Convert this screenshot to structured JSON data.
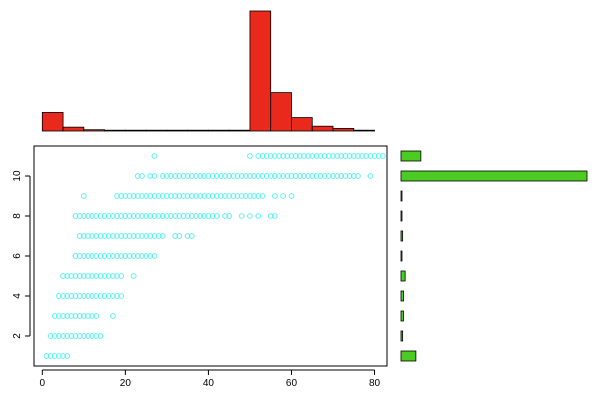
{
  "chart_data": [
    {
      "type": "bar",
      "role": "top-histogram",
      "orientation": "vertical",
      "bin_width": 5,
      "bins": [
        {
          "start": 0,
          "count": 58
        },
        {
          "start": 5,
          "count": 12
        },
        {
          "start": 10,
          "count": 4
        },
        {
          "start": 15,
          "count": 2
        },
        {
          "start": 20,
          "count": 1
        },
        {
          "start": 25,
          "count": 1
        },
        {
          "start": 30,
          "count": 1
        },
        {
          "start": 35,
          "count": 1
        },
        {
          "start": 40,
          "count": 1
        },
        {
          "start": 45,
          "count": 2
        },
        {
          "start": 50,
          "count": 375
        },
        {
          "start": 55,
          "count": 120
        },
        {
          "start": 60,
          "count": 42
        },
        {
          "start": 65,
          "count": 15
        },
        {
          "start": 70,
          "count": 8
        },
        {
          "start": 75,
          "count": 2
        }
      ],
      "color": "#e8291c",
      "xlim": [
        -2,
        83
      ],
      "ylim": [
        0,
        375
      ],
      "axes": false,
      "title": "",
      "xlabel": "",
      "ylabel": ""
    },
    {
      "type": "scatter",
      "role": "main-scatter",
      "marker": "open-circle",
      "color": "#5ff0f0",
      "xlim": [
        -2,
        83
      ],
      "ylim": [
        0.5,
        11.5
      ],
      "xticks": [
        0,
        20,
        40,
        60,
        80
      ],
      "yticks": [
        2,
        4,
        6,
        8,
        10
      ],
      "xtick_labels": [
        "0",
        "20",
        "40",
        "60",
        "80"
      ],
      "ytick_labels": [
        "2",
        "4",
        "6",
        "8",
        "10"
      ],
      "rows": [
        {
          "y": 1,
          "x_from": 1,
          "x_to": 5,
          "extra_x": [
            6
          ]
        },
        {
          "y": 2,
          "x_from": 2,
          "x_to": 13,
          "extra_x": [
            14
          ]
        },
        {
          "y": 3,
          "x_from": 3,
          "x_to": 13,
          "extra_x": [
            17
          ]
        },
        {
          "y": 4,
          "x_from": 4,
          "x_to": 18,
          "extra_x": [
            19
          ]
        },
        {
          "y": 5,
          "x_from": 5,
          "x_to": 19,
          "extra_x": [
            22
          ]
        },
        {
          "y": 6,
          "x_from": 8,
          "x_to": 25,
          "extra_x": [
            26,
            27
          ]
        },
        {
          "y": 7,
          "x_from": 9,
          "x_to": 29,
          "extra_x": [
            32,
            33,
            35,
            36
          ]
        },
        {
          "y": 8,
          "x_from": 8,
          "x_to": 42,
          "extra_x": [
            44,
            45,
            48,
            50,
            52,
            55,
            56
          ]
        },
        {
          "y": 9,
          "x_from": 18,
          "x_to": 53,
          "extra_x": [
            10,
            56,
            58,
            60
          ]
        },
        {
          "y": 10,
          "x_from": 29,
          "x_to": 76,
          "extra_x": [
            23,
            24,
            26,
            27,
            79
          ]
        },
        {
          "y": 11,
          "x_from": 52,
          "x_to": 82,
          "extra_x": [
            27,
            50
          ]
        }
      ],
      "title": "",
      "xlabel": "",
      "ylabel": ""
    },
    {
      "type": "bar",
      "role": "right-histogram",
      "orientation": "horizontal",
      "color": "#4ccc22",
      "levels": [
        1,
        2,
        3,
        4,
        5,
        6,
        7,
        8,
        9,
        10,
        11
      ],
      "counts": [
        18,
        2,
        3,
        3,
        5,
        1,
        2,
        1,
        1,
        225,
        24
      ],
      "xlim": [
        0,
        225
      ],
      "axes": false,
      "title": "",
      "xlabel": "",
      "ylabel": ""
    }
  ]
}
